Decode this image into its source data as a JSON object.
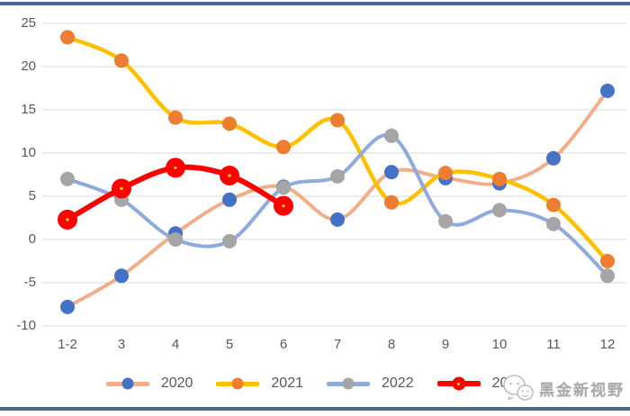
{
  "page": {
    "top_bar_color": "#47698F",
    "bottom_bar_color": "#47698F",
    "background_color": "#FFFFFF"
  },
  "watermark": {
    "text": "黑金新视野",
    "icon": "wechat-logo-icon",
    "color": "#ABABAB"
  },
  "chart_data": {
    "type": "line",
    "smooth": true,
    "title": "",
    "xlabel": "",
    "ylabel": "",
    "grid": true,
    "gridline_color": "#D9D9D9",
    "axis_text_color": "#595959",
    "legend_position": "bottom",
    "ylim": [
      -10,
      25
    ],
    "y_ticks": [
      25,
      20,
      15,
      10,
      5,
      0,
      -5,
      -10
    ],
    "categories": [
      "1-2",
      "3",
      "4",
      "5",
      "6",
      "7",
      "8",
      "9",
      "10",
      "11",
      "12"
    ],
    "series": [
      {
        "name": "2020",
        "values": [
          -7.8,
          -4.2,
          0.7,
          4.6,
          6.1,
          2.3,
          7.8,
          7.1,
          6.5,
          9.4,
          17.2
        ],
        "line_color": "#F2AE88",
        "marker_color": "#4472C4",
        "line_width": 4,
        "marker_radius": 8
      },
      {
        "name": "2021",
        "values": [
          23.4,
          20.7,
          14.1,
          13.4,
          10.7,
          13.8,
          4.3,
          7.7,
          7.0,
          4.0,
          -2.5
        ],
        "line_color": "#FFC000",
        "marker_color": "#ED7D31",
        "line_width": 4.5,
        "marker_radius": 8
      },
      {
        "name": "2022",
        "values": [
          7.0,
          4.6,
          0.0,
          -0.2,
          6.0,
          7.3,
          12.0,
          2.1,
          3.4,
          1.8,
          -4.2
        ],
        "line_color": "#8FAADC",
        "marker_color": "#A5A5A5",
        "line_width": 4,
        "marker_radius": 8
      },
      {
        "name": "2023",
        "values": [
          2.3,
          5.9,
          8.3,
          7.4,
          3.9,
          null,
          null,
          null,
          null,
          null,
          null
        ],
        "line_color": "#FF0000",
        "marker_color": "#FF0000",
        "marker_center_color": "#FFE000",
        "line_width": 6,
        "marker_radius": 11
      }
    ]
  }
}
